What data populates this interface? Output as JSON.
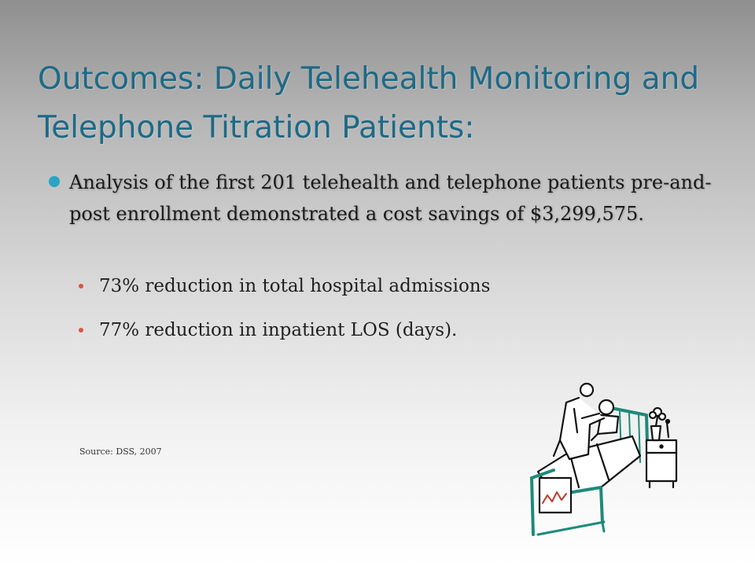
{
  "slide": {
    "title": "Outcomes: Daily Telehealth Monitoring and Telephone Titration Patients:",
    "main_bullet": "Analysis of the first 201 telehealth and telephone patients pre-and-post enrollment demonstrated a cost savings of $3,299,575.",
    "sub_bullets": [
      "73% reduction in total hospital admissions",
      "77% reduction in inpatient LOS (days)."
    ],
    "source": "Source: DSS, 2007"
  },
  "colors": {
    "title": "#1d6a86",
    "main_bullet_dot": "#2aa3c5",
    "sub_bullet_dot": "#e0533d"
  },
  "icons": {
    "clipart": "doctor-patient-bed-illustration"
  }
}
